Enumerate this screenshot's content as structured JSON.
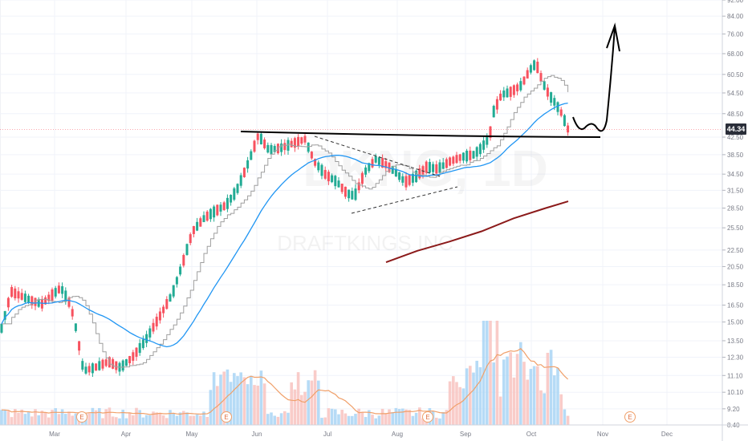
{
  "chart_data": {
    "type": "candlestick",
    "watermark": {
      "symbol": "DKNG, 1D",
      "name": "DRAFTKINGS INC"
    },
    "x_months": [
      "Mar",
      "Apr",
      "May",
      "Jun",
      "Jul",
      "Aug",
      "Sep",
      "Oct",
      "Nov",
      "Dec"
    ],
    "y_ticks": [
      "8.40",
      "9.20",
      "10.10",
      "11.10",
      "12.30",
      "13.50",
      "15.00",
      "16.50",
      "18.50",
      "20.50",
      "22.50",
      "25.50",
      "28.50",
      "31.50",
      "34.50",
      "38.50",
      "42.50",
      "48.50",
      "54.50",
      "60.50",
      "68.00",
      "76.00",
      "84.00",
      "92.00"
    ],
    "y_scale": "log",
    "y_range": [
      8.4,
      92.0
    ],
    "last_price": "44.34",
    "earnings_markers": [
      "E",
      "E",
      "E",
      "E"
    ],
    "colors": {
      "up": "#22ab94",
      "down": "#f7525f",
      "ma_fast": "#2196f3",
      "ma_slow": "#8b1a1a",
      "ma_step": "#9e9e9e",
      "volume_up": "#a9d5f5",
      "volume_down": "#f8c3bf",
      "volume_ma": "#f0a06a"
    }
  }
}
